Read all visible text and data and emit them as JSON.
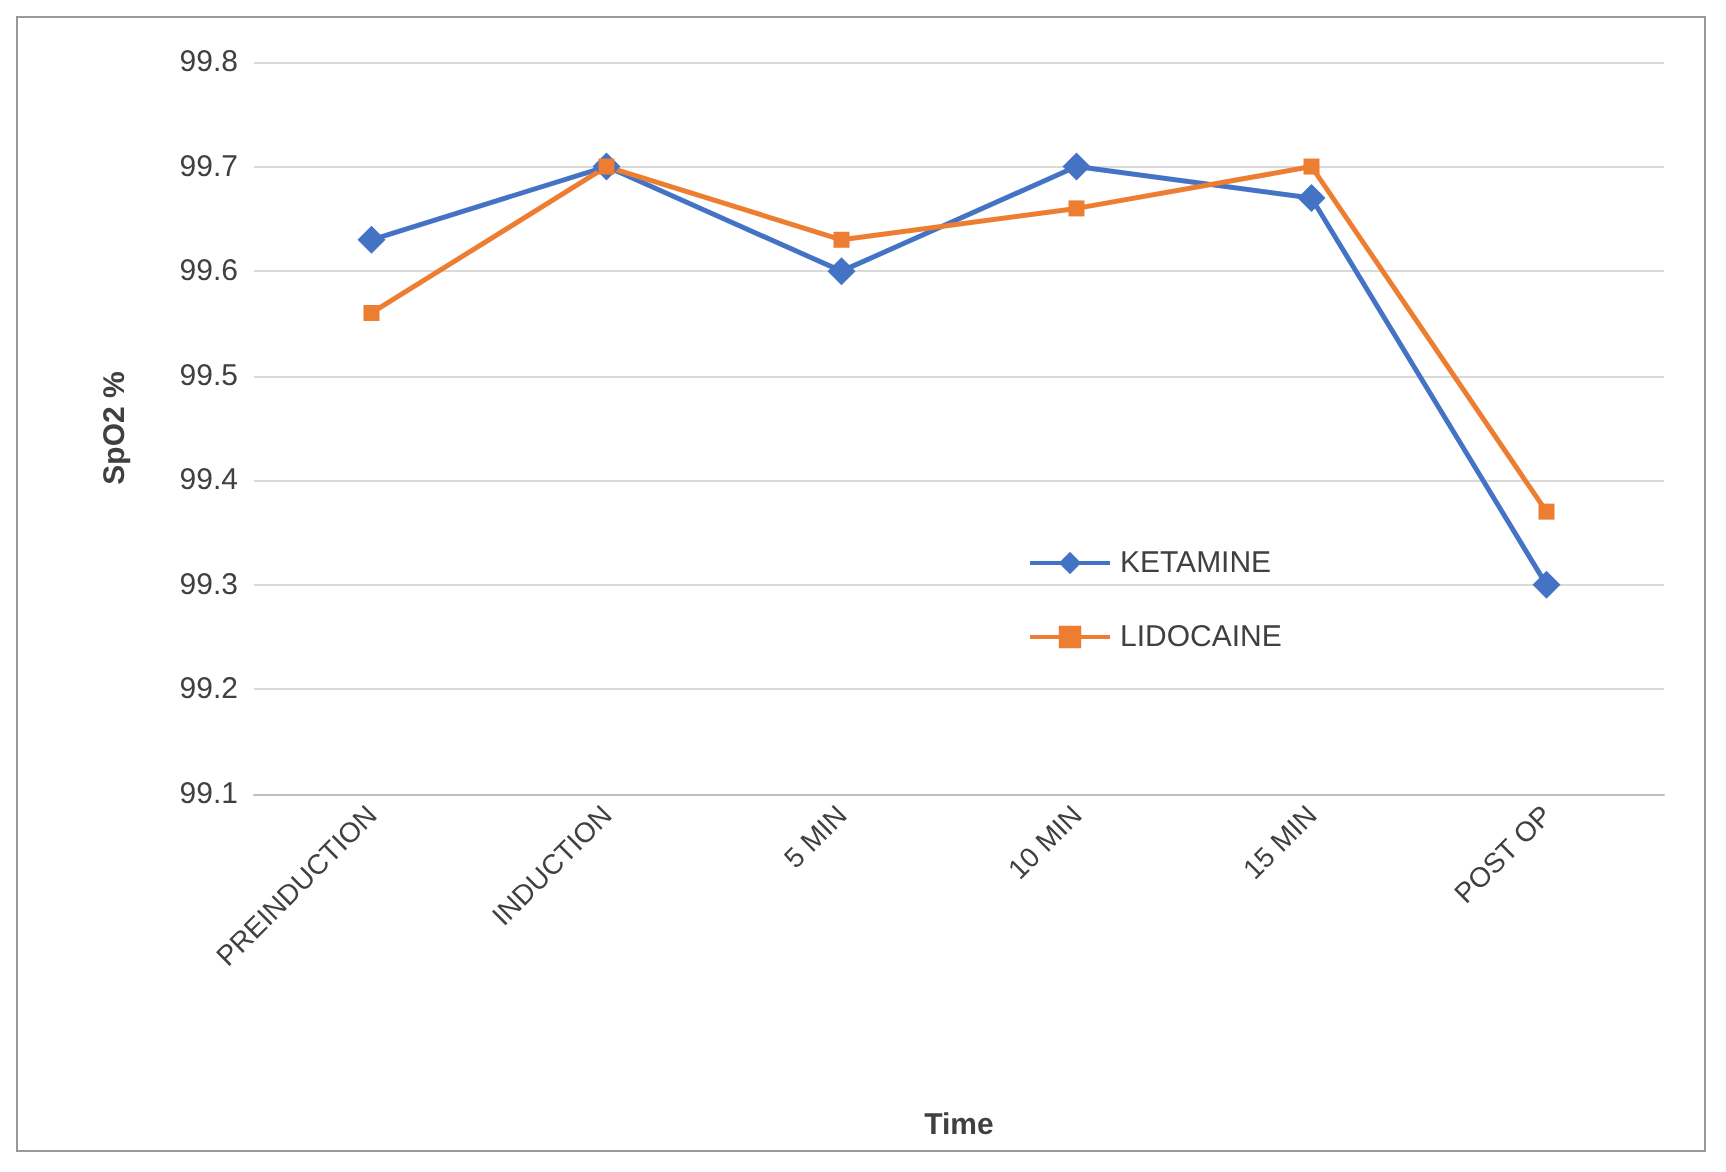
{
  "chart_data": {
    "type": "line",
    "xlabel": "Time",
    "ylabel": "SpO2 %",
    "categories": [
      "PREINDUCTION",
      "INDUCTION",
      "5 MIN",
      "10 MIN",
      "15 MIN",
      "POST OP"
    ],
    "series": [
      {
        "name": "KETAMINE",
        "color": "#4472c4",
        "marker": "diamond",
        "values": [
          99.63,
          99.7,
          99.6,
          99.7,
          99.67,
          99.3
        ]
      },
      {
        "name": "LIDOCAINE",
        "color": "#ed7d31",
        "marker": "square",
        "values": [
          99.56,
          99.7,
          99.63,
          99.66,
          99.7,
          99.37
        ]
      }
    ],
    "ylim": [
      99.1,
      99.8
    ],
    "yticks": [
      99.1,
      99.2,
      99.3,
      99.4,
      99.5,
      99.6,
      99.7,
      99.8
    ],
    "grid": "y",
    "legend": "right"
  }
}
